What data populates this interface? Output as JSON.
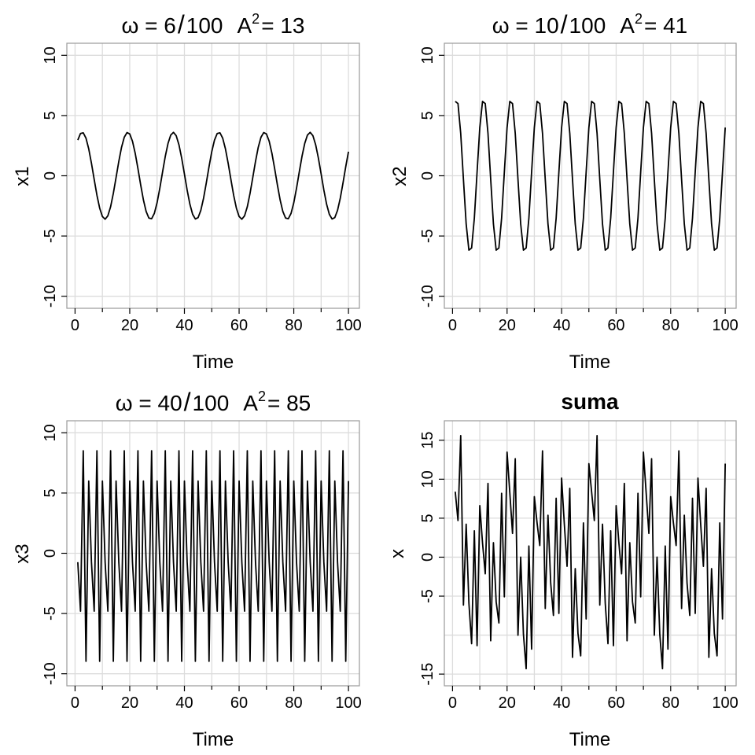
{
  "chart_data": [
    {
      "type": "line",
      "title": {
        "pre": "ω = 6",
        "num": "100",
        "a": "A",
        "sup": "2",
        "post": "= 13"
      },
      "xlabel": "Time",
      "ylabel": "x1",
      "xlim": [
        -3,
        104
      ],
      "ylim": [
        -11,
        11
      ],
      "xticks": [
        0,
        20,
        40,
        60,
        80,
        100
      ],
      "xticks_minor": [
        10,
        30,
        50,
        70,
        90
      ],
      "yticks": [
        -10,
        -5,
        0,
        5,
        10
      ],
      "grid": true,
      "x_start": 1,
      "x_end": 100,
      "generator": {
        "freq": 0.06,
        "a": 2,
        "b": 3
      },
      "y": []
    },
    {
      "type": "line",
      "title": {
        "pre": "ω = 10",
        "num": "100",
        "a": "A",
        "sup": "2",
        "post": "= 41"
      },
      "xlabel": "Time",
      "ylabel": "x2",
      "xlim": [
        -3,
        104
      ],
      "ylim": [
        -11,
        11
      ],
      "xticks": [
        0,
        20,
        40,
        60,
        80,
        100
      ],
      "xticks_minor": [
        10,
        30,
        50,
        70,
        90
      ],
      "yticks": [
        -10,
        -5,
        0,
        5,
        10
      ],
      "grid": true,
      "x_start": 1,
      "x_end": 100,
      "generator": {
        "freq": 0.1,
        "a": 4,
        "b": 5
      },
      "y": []
    },
    {
      "type": "line",
      "title": {
        "pre": "ω = 40",
        "num": "100",
        "a": "A",
        "sup": "2",
        "post": "= 85"
      },
      "xlabel": "Time",
      "ylabel": "x3",
      "xlim": [
        -3,
        104
      ],
      "ylim": [
        -11,
        11
      ],
      "xticks": [
        0,
        20,
        40,
        60,
        80,
        100
      ],
      "xticks_minor": [
        10,
        30,
        50,
        70,
        90
      ],
      "yticks": [
        -10,
        -5,
        0,
        5,
        10
      ],
      "grid": true,
      "x_start": 1,
      "x_end": 100,
      "generator": {
        "freq": 0.4,
        "a": 6,
        "b": 7
      },
      "y": []
    },
    {
      "type": "line",
      "title": "suma",
      "xlabel": "Time",
      "ylabel": "x",
      "xlim": [
        -3,
        104
      ],
      "ylim": [
        -16.5,
        17.5
      ],
      "xticks": [
        0,
        20,
        40,
        60,
        80,
        100
      ],
      "xticks_minor": [
        10,
        30,
        50,
        70,
        90
      ],
      "yticks": [
        -15,
        -5,
        0,
        5,
        10,
        15
      ],
      "ygrid_extra": [
        -10
      ],
      "grid": true,
      "x_start": 1,
      "x_end": 100,
      "y": []
    }
  ]
}
